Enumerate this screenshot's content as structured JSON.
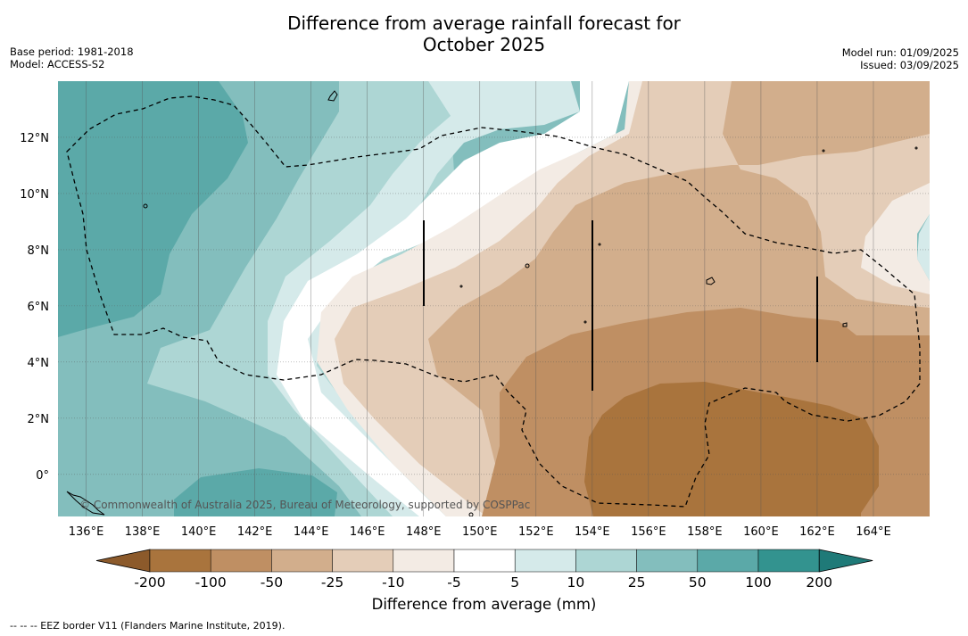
{
  "header": {
    "title_line1": "Difference from average rainfall forecast for",
    "title_line2": "October 2025",
    "base_period": "Base period: 1981-2018",
    "model": "Model: ACCESS-S2",
    "model_run": "Model run: 01/09/2025",
    "issued": "Issued: 03/09/2025"
  },
  "map": {
    "lon_range": [
      135.0,
      166.0
    ],
    "lat_range": [
      -1.5,
      14.0
    ],
    "lon_ticks": [
      {
        "value": 136,
        "label": "136°E"
      },
      {
        "value": 138,
        "label": "138°E"
      },
      {
        "value": 140,
        "label": "140°E"
      },
      {
        "value": 142,
        "label": "142°E"
      },
      {
        "value": 144,
        "label": "144°E"
      },
      {
        "value": 146,
        "label": "146°E"
      },
      {
        "value": 148,
        "label": "148°E"
      },
      {
        "value": 150,
        "label": "150°E"
      },
      {
        "value": 152,
        "label": "152°E"
      },
      {
        "value": 154,
        "label": "154°E"
      },
      {
        "value": 156,
        "label": "156°E"
      },
      {
        "value": 158,
        "label": "158°E"
      },
      {
        "value": 160,
        "label": "160°E"
      },
      {
        "value": 162,
        "label": "162°E"
      },
      {
        "value": 164,
        "label": "164°E"
      }
    ],
    "lat_ticks": [
      {
        "value": 12,
        "label": "12°N"
      },
      {
        "value": 10,
        "label": "10°N"
      },
      {
        "value": 8,
        "label": "8°N"
      },
      {
        "value": 6,
        "label": "6°N"
      },
      {
        "value": 4,
        "label": "4°N"
      },
      {
        "value": 2,
        "label": "2°N"
      },
      {
        "value": 0,
        "label": "0°"
      }
    ],
    "copyright": "© Commonwealth of Australia 2025, Bureau of Meteorology, supported by COSPPac"
  },
  "colorbar": {
    "title": "Difference from average (mm)",
    "levels": [
      "-200",
      "-100",
      "-50",
      "-25",
      "-10",
      "-5",
      "5",
      "10",
      "25",
      "50",
      "100",
      "200"
    ],
    "colors": [
      "#a9743d",
      "#bf8f63",
      "#d2ae8c",
      "#e4cdb8",
      "#f3ebe4",
      "#ffffff",
      "#d5eaea",
      "#add6d4",
      "#83bebd",
      "#5ba9a8",
      "#33938f"
    ],
    "under_color": "#8c5a2b",
    "over_color": "#1f7a78"
  },
  "footer": {
    "legend": "-- -- -- EEZ border V11 (Flanders Marine Institute, 2019)."
  }
}
